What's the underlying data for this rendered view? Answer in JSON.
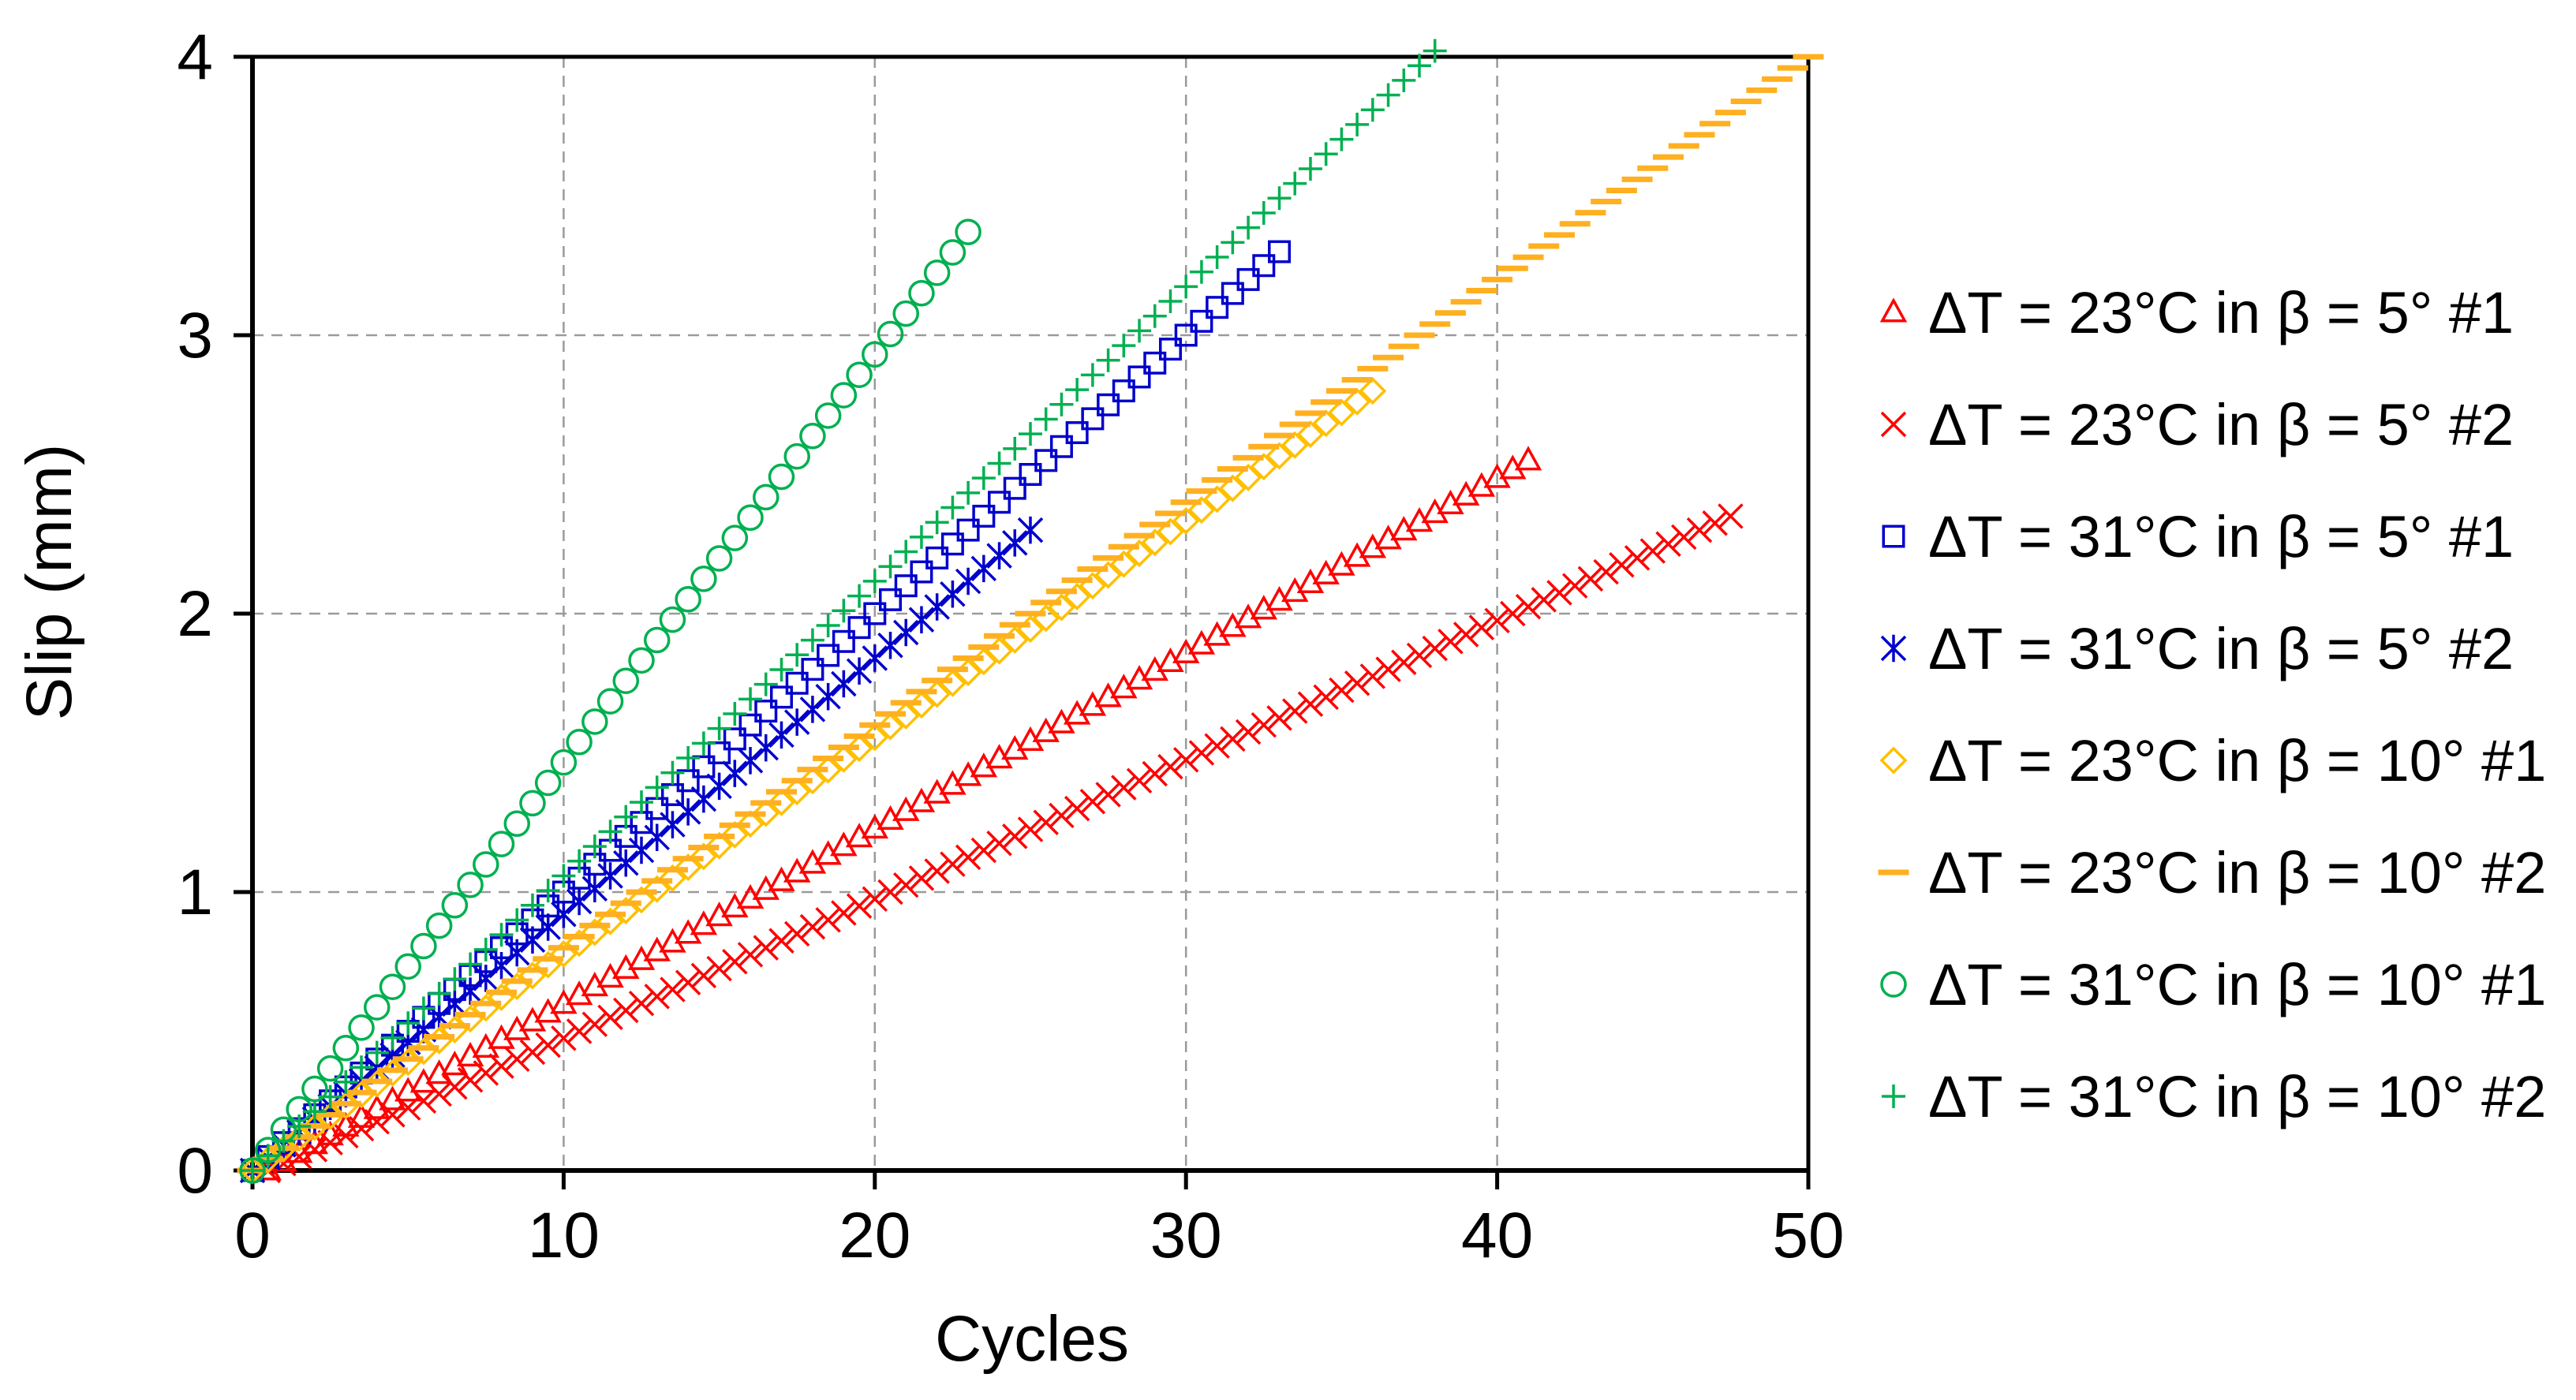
{
  "chart_data": {
    "type": "scatter",
    "title": "",
    "xlabel": "Cycles",
    "ylabel": "Slip (mm)",
    "xlim": [
      0,
      50
    ],
    "ylim": [
      0,
      4
    ],
    "xticks": [
      0,
      10,
      20,
      30,
      40,
      50
    ],
    "yticks": [
      0,
      1,
      2,
      3,
      4
    ],
    "xtick_labels": [
      "0",
      "10",
      "20",
      "30",
      "40",
      "50"
    ],
    "ytick_labels": [
      "0",
      "1",
      "2",
      "3",
      "4"
    ],
    "grid": true,
    "legend_position": "right",
    "series": [
      {
        "name": "ΔT = 23°C in β = 5° #1",
        "marker": "triangle",
        "color": "#ff0000",
        "x_start": 0.5,
        "x_end": 41,
        "y_end": 2.55,
        "step": 0.5
      },
      {
        "name": "ΔT = 23°C in β = 5° #2",
        "marker": "x",
        "color": "#ff0000",
        "x_start": 0.5,
        "x_end": 47.5,
        "y_end": 2.35,
        "step": 0.5
      },
      {
        "name": "ΔT = 31°C in β = 5° #1",
        "marker": "square",
        "color": "#0000cc",
        "x_start": 0,
        "x_end": 33,
        "y_end": 3.3,
        "step": 0.5
      },
      {
        "name": "ΔT = 31°C in β = 5° #2",
        "marker": "asterisk",
        "color": "#0000cc",
        "x_start": 0,
        "x_end": 25,
        "y_end": 2.3,
        "step": 0.5
      },
      {
        "name": "ΔT = 23°C in β = 10° #1",
        "marker": "diamond",
        "color": "#ffc000",
        "x_start": 0,
        "x_end": 36,
        "y_end": 2.8,
        "step": 0.5
      },
      {
        "name": "ΔT = 23°C in β = 10° #2",
        "marker": "dash",
        "color": "#ffb020",
        "x_start": 0,
        "x_end": 50,
        "y_end": 4.0,
        "step": 0.5
      },
      {
        "name": "ΔT = 31°C in β = 10° #1",
        "marker": "circle",
        "color": "#00b050",
        "x_start": 0,
        "x_end": 23.2,
        "y_end": 3.4,
        "step": 0.5
      },
      {
        "name": "ΔT = 31°C in β = 10° #2",
        "marker": "plus",
        "color": "#00b050",
        "x_start": 0,
        "x_end": 37.8,
        "y_end": 4.0,
        "step": 0.5
      }
    ]
  }
}
